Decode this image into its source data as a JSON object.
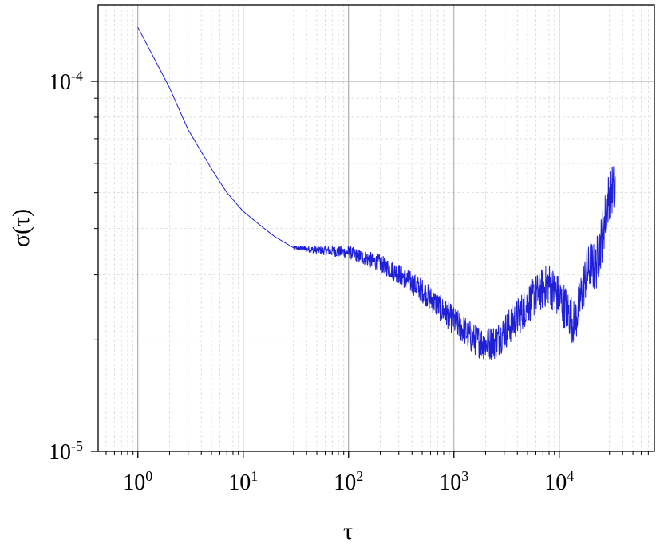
{
  "chart_data": {
    "type": "line",
    "xlabel": "τ",
    "ylabel": "σ(τ)",
    "x_scale": "log",
    "y_scale": "log",
    "xlim": [
      0.42,
      80000
    ],
    "ylim": [
      1e-05,
      0.000161
    ],
    "grid": "major solid gray, minor dashed light gray",
    "x_ticks": [
      {
        "value": 1,
        "base": "10",
        "exp": "0"
      },
      {
        "value": 10,
        "base": "10",
        "exp": "1"
      },
      {
        "value": 100,
        "base": "10",
        "exp": "2"
      },
      {
        "value": 1000,
        "base": "10",
        "exp": "3"
      },
      {
        "value": 10000,
        "base": "10",
        "exp": "4"
      }
    ],
    "y_ticks": [
      {
        "value": 1e-05,
        "base": "10",
        "exp": "-5"
      },
      {
        "value": 0.0001,
        "base": "10",
        "exp": "-4"
      }
    ],
    "series": [
      {
        "color": "#1f1fd6",
        "points": [
          [
            1,
            0.00014
          ],
          [
            2,
            9.6e-05
          ],
          [
            3,
            7.4e-05
          ],
          [
            5,
            5.8e-05
          ],
          [
            7,
            5e-05
          ],
          [
            10,
            4.45e-05
          ],
          [
            15,
            4.05e-05
          ],
          [
            20,
            3.8e-05
          ],
          [
            30,
            3.55e-05
          ],
          [
            50,
            3.5e-05
          ],
          [
            100,
            3.45e-05
          ],
          [
            200,
            3.22e-05
          ],
          [
            300,
            3.02e-05
          ],
          [
            500,
            2.72e-05
          ],
          [
            700,
            2.48e-05
          ],
          [
            1000,
            2.25e-05
          ],
          [
            1500,
            2.02e-05
          ],
          [
            2000,
            1.95e-05
          ],
          [
            2500,
            1.98e-05
          ],
          [
            3000,
            2.1e-05
          ],
          [
            4000,
            2.3e-05
          ],
          [
            5000,
            2.5e-05
          ],
          [
            6000,
            2.65e-05
          ],
          [
            7000,
            2.75e-05
          ],
          [
            8000,
            2.85e-05
          ],
          [
            9000,
            2.7e-05
          ],
          [
            10000,
            2.6e-05
          ],
          [
            12000,
            2.4e-05
          ],
          [
            14000,
            2.2e-05
          ],
          [
            16000,
            2.6e-05
          ],
          [
            18000,
            3e-05
          ],
          [
            20000,
            3.2e-05
          ],
          [
            22000,
            3.1e-05
          ],
          [
            24000,
            3.5e-05
          ],
          [
            26000,
            3.9e-05
          ],
          [
            28000,
            4.5e-05
          ],
          [
            30000,
            5e-05
          ],
          [
            32000,
            5.1e-05
          ],
          [
            34000,
            5.05e-05
          ]
        ],
        "noise_from": 30
      }
    ]
  }
}
